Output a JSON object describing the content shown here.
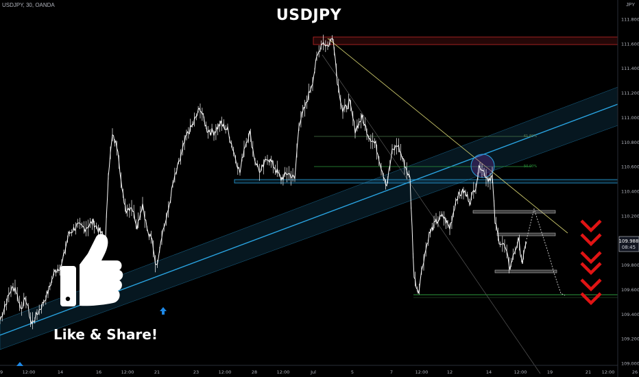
{
  "header": {
    "symbol_line": "USDJPY, 30, OANDA",
    "title": "USDJPY",
    "currency": "JPY"
  },
  "badges": {
    "last_price": "109.988",
    "countdown": "08:45"
  },
  "promo": {
    "like_share": "Like & Share!"
  },
  "colors": {
    "background": "#000000",
    "candle": "#ffffff",
    "channel": "#29a3e0",
    "down_arrows": "#e01414",
    "resistance_zone": "#c62828",
    "support_line": "#2e9e3e",
    "trendline": "#c9c66a"
  },
  "icons": [
    "thumbs-up-icon",
    "up-arrow-icon",
    "chevron-down-icon"
  ],
  "chart_data": {
    "type": "candlestick",
    "title": "USDJPY",
    "timeframe": "30",
    "source": "OANDA",
    "ylim": [
      109.0,
      111.9
    ],
    "y_ticks": [
      "111.800",
      "111.600",
      "111.400",
      "111.200",
      "111.000",
      "110.800",
      "110.600",
      "110.400",
      "110.200",
      "110.000",
      "109.800",
      "109.600",
      "109.400",
      "109.200",
      "109.000"
    ],
    "x_ticks": [
      "9",
      "12:00",
      "14",
      "16",
      "12:00",
      "21",
      "23",
      "12:00",
      "28",
      "12:00",
      "Jul",
      "5",
      "7",
      "12:00",
      "12",
      "14",
      "12:00",
      "19",
      "21",
      "12:00",
      "26"
    ],
    "price_path": [
      [
        0,
        109.35
      ],
      [
        8,
        109.48
      ],
      [
        16,
        109.6
      ],
      [
        22,
        109.62
      ],
      [
        30,
        109.45
      ],
      [
        38,
        109.52
      ],
      [
        46,
        109.32
      ],
      [
        54,
        109.4
      ],
      [
        62,
        109.48
      ],
      [
        70,
        109.58
      ],
      [
        80,
        109.75
      ],
      [
        90,
        109.8
      ],
      [
        100,
        110.05
      ],
      [
        112,
        110.12
      ],
      [
        124,
        110.1
      ],
      [
        136,
        110.15
      ],
      [
        148,
        110.05
      ],
      [
        154,
        110.0
      ],
      [
        158,
        110.55
      ],
      [
        164,
        110.85
      ],
      [
        172,
        110.75
      ],
      [
        178,
        110.4
      ],
      [
        184,
        110.25
      ],
      [
        192,
        110.28
      ],
      [
        200,
        110.12
      ],
      [
        208,
        110.3
      ],
      [
        216,
        110.05
      ],
      [
        222,
        110.0
      ],
      [
        228,
        109.78
      ],
      [
        236,
        110.05
      ],
      [
        244,
        110.2
      ],
      [
        252,
        110.45
      ],
      [
        262,
        110.65
      ],
      [
        272,
        110.85
      ],
      [
        282,
        110.95
      ],
      [
        292,
        111.08
      ],
      [
        302,
        110.9
      ],
      [
        312,
        110.88
      ],
      [
        322,
        110.95
      ],
      [
        332,
        110.9
      ],
      [
        342,
        110.7
      ],
      [
        350,
        110.55
      ],
      [
        356,
        110.75
      ],
      [
        364,
        110.88
      ],
      [
        372,
        110.65
      ],
      [
        380,
        110.55
      ],
      [
        390,
        110.68
      ],
      [
        400,
        110.6
      ],
      [
        410,
        110.5
      ],
      [
        420,
        110.55
      ],
      [
        430,
        110.5
      ],
      [
        436,
        110.95
      ],
      [
        446,
        111.1
      ],
      [
        456,
        111.3
      ],
      [
        462,
        111.48
      ],
      [
        470,
        111.62
      ],
      [
        478,
        111.58
      ],
      [
        486,
        111.66
      ],
      [
        492,
        111.3
      ],
      [
        500,
        111.05
      ],
      [
        510,
        111.12
      ],
      [
        518,
        110.9
      ],
      [
        528,
        111.0
      ],
      [
        538,
        110.85
      ],
      [
        548,
        110.78
      ],
      [
        556,
        110.6
      ],
      [
        564,
        110.45
      ],
      [
        572,
        110.72
      ],
      [
        580,
        110.78
      ],
      [
        590,
        110.62
      ],
      [
        598,
        110.5
      ],
      [
        604,
        109.7
      ],
      [
        610,
        109.58
      ],
      [
        618,
        109.85
      ],
      [
        626,
        110.05
      ],
      [
        636,
        110.15
      ],
      [
        646,
        110.2
      ],
      [
        656,
        110.1
      ],
      [
        666,
        110.35
      ],
      [
        676,
        110.4
      ],
      [
        686,
        110.32
      ],
      [
        694,
        110.45
      ],
      [
        700,
        110.62
      ],
      [
        706,
        110.55
      ],
      [
        712,
        110.5
      ],
      [
        718,
        110.52
      ],
      [
        722,
        110.15
      ],
      [
        728,
        110.0
      ],
      [
        736,
        109.95
      ],
      [
        744,
        109.78
      ],
      [
        750,
        109.9
      ],
      [
        756,
        110.0
      ],
      [
        762,
        109.82
      ],
      [
        768,
        109.99
      ]
    ],
    "last_price": 109.988,
    "annotations": {
      "fib_labels": [
        "61.80%",
        "50.00%"
      ],
      "resistance_zone": [
        111.58,
        111.66
      ],
      "horizontal_level": 110.5,
      "support_level": 109.56,
      "projection_levels": [
        110.22,
        110.02,
        109.76
      ]
    },
    "grid": false,
    "legend": "none"
  }
}
